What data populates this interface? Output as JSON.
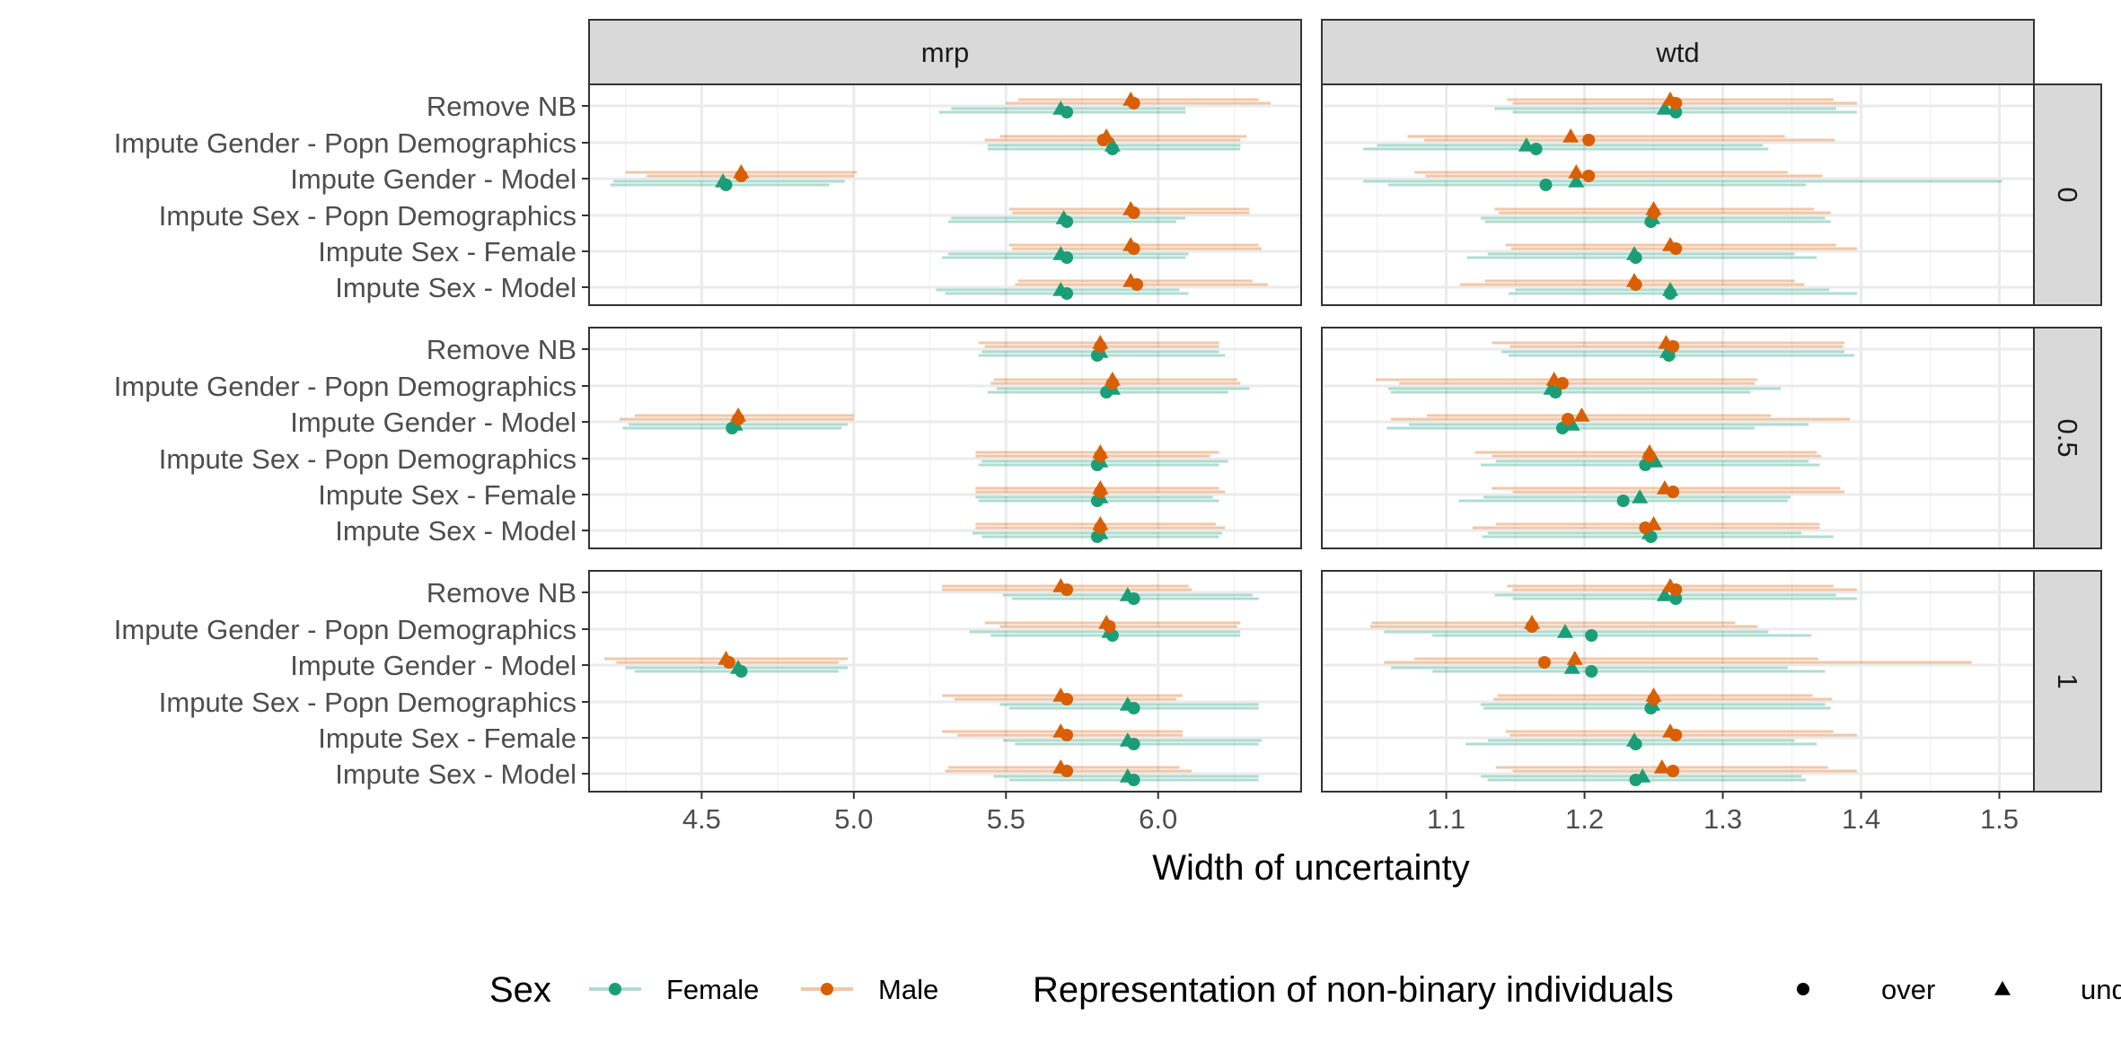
{
  "chart_data": {
    "type": "scatter",
    "title": "",
    "xlabel": "Width of uncertainty",
    "ylabel": "",
    "column_facets": [
      "mrp",
      "wtd"
    ],
    "row_facets": [
      "0",
      "0.5",
      "1"
    ],
    "y_categories": [
      "Remove NB",
      "Impute Gender - Popn Demographics",
      "Impute Gender - Model",
      "Impute Sex - Popn Demographics",
      "Impute Sex - Female",
      "Impute Sex - Model"
    ],
    "x_axes": {
      "mrp": {
        "range": [
          4.13,
          6.47
        ],
        "ticks": [
          4.5,
          5.0,
          5.5,
          6.0
        ],
        "tick_labels": [
          "4.5",
          "5.0",
          "5.5",
          "6.0"
        ]
      },
      "wtd": {
        "range": [
          1.01,
          1.525
        ],
        "ticks": [
          1.1,
          1.2,
          1.3,
          1.4,
          1.5
        ],
        "tick_labels": [
          "1.1",
          "1.2",
          "1.3",
          "1.4",
          "1.5"
        ]
      }
    },
    "grid": true,
    "legend_position": "bottom",
    "legends": {
      "sex": {
        "title": "Sex",
        "entries": [
          {
            "name": "Female",
            "color": "#1b9e77"
          },
          {
            "name": "Male",
            "color": "#d95f02"
          }
        ]
      },
      "representation": {
        "title": "Representation of non-binary individuals",
        "entries": [
          {
            "name": "over",
            "shape": "circle"
          },
          {
            "name": "unde",
            "shape": "triangle"
          }
        ]
      }
    },
    "colors": {
      "Female": "#1b9e77",
      "Male": "#d95f02"
    },
    "point_order": "sex, representation: Female-over, Female-under, Male-over, Male-under; values are [point, interval_low, interval_high] in data units",
    "panels": {
      "mrp": {
        "0": [
          [
            [
              5.7,
              5.28,
              6.09
            ],
            [
              5.68,
              5.32,
              6.09
            ],
            [
              5.92,
              5.5,
              6.37
            ],
            [
              5.91,
              5.54,
              6.33
            ]
          ],
          [
            [
              5.85,
              5.44,
              6.27
            ],
            [
              5.85,
              5.44,
              6.27
            ],
            [
              5.82,
              5.43,
              6.27
            ],
            [
              5.83,
              5.48,
              6.29
            ]
          ],
          [
            [
              4.58,
              4.2,
              4.92
            ],
            [
              4.57,
              4.21,
              4.97
            ],
            [
              4.63,
              4.32,
              5.0
            ],
            [
              4.63,
              4.25,
              5.01
            ]
          ],
          [
            [
              5.7,
              5.31,
              6.06
            ],
            [
              5.69,
              5.32,
              6.09
            ],
            [
              5.92,
              5.52,
              6.3
            ],
            [
              5.91,
              5.51,
              6.3
            ]
          ],
          [
            [
              5.7,
              5.29,
              6.09
            ],
            [
              5.68,
              5.31,
              6.1
            ],
            [
              5.92,
              5.52,
              6.34
            ],
            [
              5.91,
              5.51,
              6.33
            ]
          ],
          [
            [
              5.7,
              5.3,
              6.1
            ],
            [
              5.68,
              5.27,
              6.07
            ],
            [
              5.93,
              5.53,
              6.36
            ],
            [
              5.91,
              5.54,
              6.31
            ]
          ]
        ],
        "0.5": [
          [
            [
              5.8,
              5.41,
              6.22
            ],
            [
              5.81,
              5.42,
              6.2
            ],
            [
              5.81,
              5.43,
              6.2
            ],
            [
              5.81,
              5.41,
              6.2
            ]
          ],
          [
            [
              5.83,
              5.44,
              6.23
            ],
            [
              5.85,
              5.47,
              6.3
            ],
            [
              5.85,
              5.45,
              6.27
            ],
            [
              5.85,
              5.46,
              6.26
            ]
          ],
          [
            [
              4.6,
              4.24,
              4.96
            ],
            [
              4.61,
              4.26,
              4.98
            ],
            [
              4.62,
              4.23,
              5.0
            ],
            [
              4.62,
              4.28,
              5.0
            ]
          ],
          [
            [
              5.8,
              5.41,
              6.2
            ],
            [
              5.81,
              5.42,
              6.23
            ],
            [
              5.81,
              5.4,
              6.17
            ],
            [
              5.81,
              5.4,
              6.2
            ]
          ],
          [
            [
              5.8,
              5.41,
              6.2
            ],
            [
              5.81,
              5.4,
              6.18
            ],
            [
              5.81,
              5.4,
              6.22
            ],
            [
              5.81,
              5.4,
              6.2
            ]
          ],
          [
            [
              5.8,
              5.42,
              6.2
            ],
            [
              5.81,
              5.39,
              6.21
            ],
            [
              5.81,
              5.4,
              6.22
            ],
            [
              5.81,
              5.4,
              6.19
            ]
          ]
        ],
        "1": [
          [
            [
              5.92,
              5.52,
              6.33
            ],
            [
              5.9,
              5.49,
              6.31
            ],
            [
              5.7,
              5.29,
              6.11
            ],
            [
              5.68,
              5.29,
              6.1
            ]
          ],
          [
            [
              5.85,
              5.45,
              6.27
            ],
            [
              5.84,
              5.38,
              6.27
            ],
            [
              5.84,
              5.48,
              6.26
            ],
            [
              5.83,
              5.43,
              6.27
            ]
          ],
          [
            [
              4.63,
              4.28,
              4.95
            ],
            [
              4.62,
              4.25,
              4.98
            ],
            [
              4.59,
              4.22,
              4.95
            ],
            [
              4.58,
              4.18,
              4.98
            ]
          ],
          [
            [
              5.92,
              5.51,
              6.33
            ],
            [
              5.9,
              5.48,
              6.33
            ],
            [
              5.7,
              5.33,
              6.06
            ],
            [
              5.68,
              5.29,
              6.08
            ]
          ],
          [
            [
              5.92,
              5.53,
              6.33
            ],
            [
              5.9,
              5.49,
              6.34
            ],
            [
              5.7,
              5.34,
              6.08
            ],
            [
              5.68,
              5.29,
              6.08
            ]
          ],
          [
            [
              5.92,
              5.51,
              6.33
            ],
            [
              5.9,
              5.46,
              6.33
            ],
            [
              5.7,
              5.3,
              6.11
            ],
            [
              5.68,
              5.31,
              6.07
            ]
          ]
        ]
      },
      "wtd": {
        "0": [
          [
            [
              1.266,
              1.148,
              1.397
            ],
            [
              1.258,
              1.135,
              1.382
            ],
            [
              1.266,
              1.148,
              1.397
            ],
            [
              1.262,
              1.144,
              1.38
            ]
          ],
          [
            [
              1.165,
              1.04,
              1.333
            ],
            [
              1.158,
              1.05,
              1.329
            ],
            [
              1.203,
              1.084,
              1.381
            ],
            [
              1.19,
              1.072,
              1.345
            ]
          ],
          [
            [
              1.172,
              1.058,
              1.36
            ],
            [
              1.194,
              1.04,
              1.502
            ],
            [
              1.203,
              1.085,
              1.372
            ],
            [
              1.194,
              1.077,
              1.347
            ]
          ],
          [
            [
              1.248,
              1.128,
              1.378
            ],
            [
              1.249,
              1.125,
              1.374
            ],
            [
              1.25,
              1.138,
              1.378
            ],
            [
              1.25,
              1.135,
              1.366
            ]
          ],
          [
            [
              1.237,
              1.115,
              1.368
            ],
            [
              1.236,
              1.13,
              1.352
            ],
            [
              1.266,
              1.147,
              1.397
            ],
            [
              1.262,
              1.143,
              1.382
            ]
          ],
          [
            [
              1.262,
              1.145,
              1.397
            ],
            [
              1.262,
              1.15,
              1.377
            ],
            [
              1.237,
              1.11,
              1.359
            ],
            [
              1.236,
              1.128,
              1.352
            ]
          ]
        ],
        "0.5": [
          [
            [
              1.261,
              1.145,
              1.395
            ],
            [
              1.26,
              1.14,
              1.388
            ],
            [
              1.264,
              1.146,
              1.387
            ],
            [
              1.259,
              1.133,
              1.388
            ]
          ],
          [
            [
              1.179,
              1.06,
              1.32
            ],
            [
              1.176,
              1.058,
              1.342
            ],
            [
              1.184,
              1.066,
              1.323
            ],
            [
              1.178,
              1.049,
              1.325
            ]
          ],
          [
            [
              1.184,
              1.057,
              1.323
            ],
            [
              1.191,
              1.073,
              1.362
            ],
            [
              1.188,
              1.06,
              1.392
            ],
            [
              1.198,
              1.086,
              1.335
            ]
          ],
          [
            [
              1.244,
              1.125,
              1.37
            ],
            [
              1.251,
              1.136,
              1.362
            ],
            [
              1.247,
              1.133,
              1.371
            ],
            [
              1.247,
              1.121,
              1.368
            ]
          ],
          [
            [
              1.228,
              1.109,
              1.347
            ],
            [
              1.24,
              1.127,
              1.349
            ],
            [
              1.264,
              1.148,
              1.388
            ],
            [
              1.258,
              1.133,
              1.385
            ]
          ],
          [
            [
              1.248,
              1.126,
              1.38
            ],
            [
              1.247,
              1.13,
              1.357
            ],
            [
              1.244,
              1.119,
              1.37
            ],
            [
              1.25,
              1.136,
              1.37
            ]
          ]
        ],
        "1": [
          [
            [
              1.266,
              1.148,
              1.397
            ],
            [
              1.258,
              1.135,
              1.382
            ],
            [
              1.266,
              1.148,
              1.397
            ],
            [
              1.262,
              1.144,
              1.38
            ]
          ],
          [
            [
              1.205,
              1.09,
              1.364
            ],
            [
              1.186,
              1.055,
              1.333
            ],
            [
              1.162,
              1.045,
              1.325
            ],
            [
              1.162,
              1.046,
              1.309
            ]
          ],
          [
            [
              1.205,
              1.09,
              1.374
            ],
            [
              1.191,
              1.06,
              1.347
            ],
            [
              1.171,
              1.055,
              1.48
            ],
            [
              1.193,
              1.077,
              1.369
            ]
          ],
          [
            [
              1.248,
              1.127,
              1.378
            ],
            [
              1.249,
              1.125,
              1.374
            ],
            [
              1.25,
              1.134,
              1.379
            ],
            [
              1.25,
              1.137,
              1.365
            ]
          ],
          [
            [
              1.237,
              1.114,
              1.368
            ],
            [
              1.236,
              1.13,
              1.352
            ],
            [
              1.266,
              1.146,
              1.397
            ],
            [
              1.262,
              1.143,
              1.38
            ]
          ],
          [
            [
              1.237,
              1.13,
              1.36
            ],
            [
              1.242,
              1.125,
              1.357
            ],
            [
              1.264,
              1.148,
              1.397
            ],
            [
              1.256,
              1.136,
              1.376
            ]
          ]
        ]
      }
    }
  }
}
